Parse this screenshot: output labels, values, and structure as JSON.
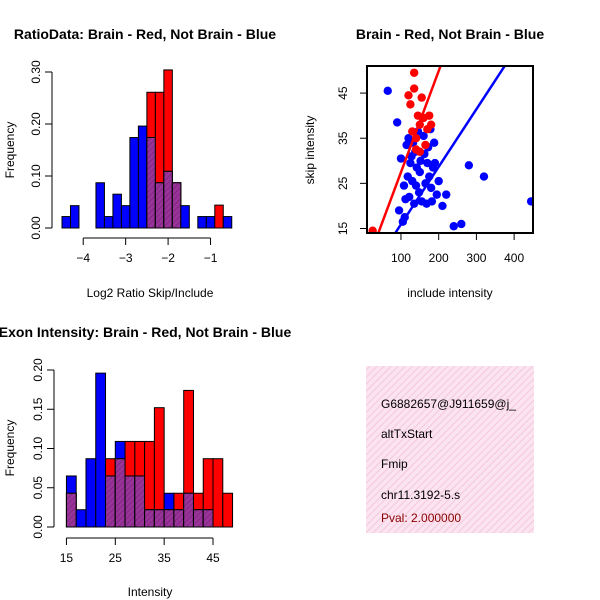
{
  "colors": {
    "red": "#ff0000",
    "blue": "#0000ff",
    "purple": "#993399",
    "panel_bg": "#fbe3ef",
    "panel_hatch": "#f3c8de",
    "pval": "#8b0000"
  },
  "chart_data": [
    {
      "id": "ratio_hist",
      "type": "bar",
      "title": "RatioData: Brain - Red, Not Brain - Blue",
      "xlabel": "Log2 Ratio Skip/Include",
      "ylabel": "Frequency",
      "xlim": [
        -4.5,
        -0.4
      ],
      "ylim": [
        0,
        0.3
      ],
      "xticks": [
        -4,
        -3,
        -2,
        -1
      ],
      "xtick_labels": [
        "−4",
        "−3",
        "−2",
        "−1"
      ],
      "yticks": [
        0,
        0.1,
        0.2,
        0.3
      ],
      "ytick_labels": [
        "0.00",
        "0.10",
        "0.20",
        "0.30"
      ],
      "bin_width": 0.2,
      "bin_starts": [
        -4.5,
        -4.3,
        -4.1,
        -3.9,
        -3.7,
        -3.5,
        -3.3,
        -3.1,
        -2.9,
        -2.7,
        -2.5,
        -2.3,
        -2.1,
        -1.9,
        -1.7,
        -1.5,
        -1.3,
        -1.1,
        -0.9,
        -0.7,
        -0.5
      ],
      "series": [
        {
          "name": "Not Brain",
          "color": "blue",
          "values": [
            0.022,
            0.043,
            0,
            0,
            0.087,
            0.022,
            0.065,
            0.043,
            0.174,
            0.196,
            0.174,
            0.087,
            0.109,
            0.087,
            0.043,
            0,
            0.022,
            0.022,
            0,
            0.022,
            0
          ]
        },
        {
          "name": "Brain",
          "color": "red",
          "values": [
            0,
            0,
            0,
            0,
            0,
            0,
            0,
            0,
            0,
            0,
            0.261,
            0.261,
            0.304,
            0.087,
            0,
            0,
            0,
            0,
            0.044,
            0,
            0
          ]
        }
      ]
    },
    {
      "id": "intensity_scatter",
      "type": "scatter",
      "title": "Brain - Red, Not Brain - Blue",
      "xlabel": "include intensity",
      "ylabel": "skip intensity",
      "xlim": [
        10,
        450
      ],
      "ylim": [
        14,
        51
      ],
      "xticks": [
        100,
        200,
        300,
        400
      ],
      "xtick_labels": [
        "100",
        "200",
        "300",
        "400"
      ],
      "yticks": [
        15,
        25,
        35,
        45
      ],
      "ytick_labels": [
        "15",
        "25",
        "35",
        "45"
      ],
      "series": [
        {
          "name": "Not Brain",
          "color": "blue",
          "x": [
            65,
            90,
            100,
            105,
            110,
            112,
            115,
            118,
            120,
            122,
            125,
            128,
            130,
            132,
            135,
            138,
            140,
            142,
            145,
            148,
            150,
            152,
            155,
            158,
            160,
            162,
            165,
            168,
            170,
            172,
            175,
            178,
            180,
            182,
            185,
            188,
            190,
            195,
            200,
            210,
            220,
            240,
            260,
            280,
            320,
            95,
            108,
            445
          ],
          "y": [
            45.5,
            38.5,
            30.5,
            16.5,
            17.5,
            21.5,
            33.5,
            26.5,
            35,
            22,
            29.5,
            31,
            25.5,
            34,
            20.5,
            32,
            24.5,
            28.5,
            36.5,
            23,
            27.5,
            30,
            21,
            39.5,
            35.5,
            31.5,
            25,
            20.5,
            29.5,
            33,
            26.5,
            37,
            24,
            21,
            28.5,
            34,
            29.5,
            22.5,
            25.5,
            20,
            22.5,
            15.5,
            16,
            29,
            26.5,
            19,
            24.5,
            21
          ]
        },
        {
          "name": "Brain",
          "color": "red",
          "x": [
            25,
            120,
            125,
            130,
            135,
            140,
            145,
            150,
            155,
            160,
            165,
            170,
            175,
            180,
            150,
            135,
            140
          ],
          "y": [
            14.5,
            44.5,
            42.5,
            36.5,
            49.5,
            32.5,
            40,
            38,
            44,
            39.5,
            33.5,
            37,
            40,
            38,
            32,
            46,
            35
          ]
        }
      ],
      "fit_lines": [
        {
          "name": "Brain fit",
          "color": "red",
          "x": [
            40,
            205
          ],
          "y": [
            14,
            51
          ]
        },
        {
          "name": "Not Brain fit",
          "color": "blue",
          "x": [
            85,
            375
          ],
          "y": [
            14,
            51
          ]
        }
      ]
    },
    {
      "id": "intensity_hist",
      "type": "bar",
      "title": "Exon Intensity: Brain - Red, Not Brain - Blue",
      "xlabel": "Intensity",
      "ylabel": "Frequency",
      "xlim": [
        14.5,
        49.5
      ],
      "ylim": [
        0,
        0.2
      ],
      "xticks": [
        15,
        25,
        35,
        45
      ],
      "xtick_labels": [
        "15",
        "25",
        "35",
        "45"
      ],
      "yticks": [
        0,
        0.05,
        0.1,
        0.15,
        0.2
      ],
      "ytick_labels": [
        "0.00",
        "0.05",
        "0.10",
        "0.15",
        "0.20"
      ],
      "bin_width": 2,
      "bin_starts": [
        15,
        17,
        19,
        21,
        23,
        25,
        27,
        29,
        31,
        33,
        35,
        37,
        39,
        41,
        43,
        45,
        47
      ],
      "series": [
        {
          "name": "Not Brain",
          "color": "blue",
          "values": [
            0.065,
            0.022,
            0.087,
            0.196,
            0.065,
            0.109,
            0.065,
            0.065,
            0.022,
            0.022,
            0.043,
            0.022,
            0.043,
            0.022,
            0.022,
            0,
            0
          ]
        },
        {
          "name": "Brain",
          "color": "red",
          "values": [
            0.043,
            0,
            0,
            0,
            0.087,
            0.087,
            0.109,
            0.109,
            0.109,
            0.152,
            0.022,
            0.043,
            0.174,
            0.043,
            0.087,
            0.087,
            0.043
          ]
        }
      ]
    }
  ],
  "info_panel": {
    "lines": [
      "G6882657@J911659@j_",
      "altTxStart",
      "Fmip",
      "chr11.3192-5.s"
    ],
    "pval": "Pval: 2.000000"
  }
}
